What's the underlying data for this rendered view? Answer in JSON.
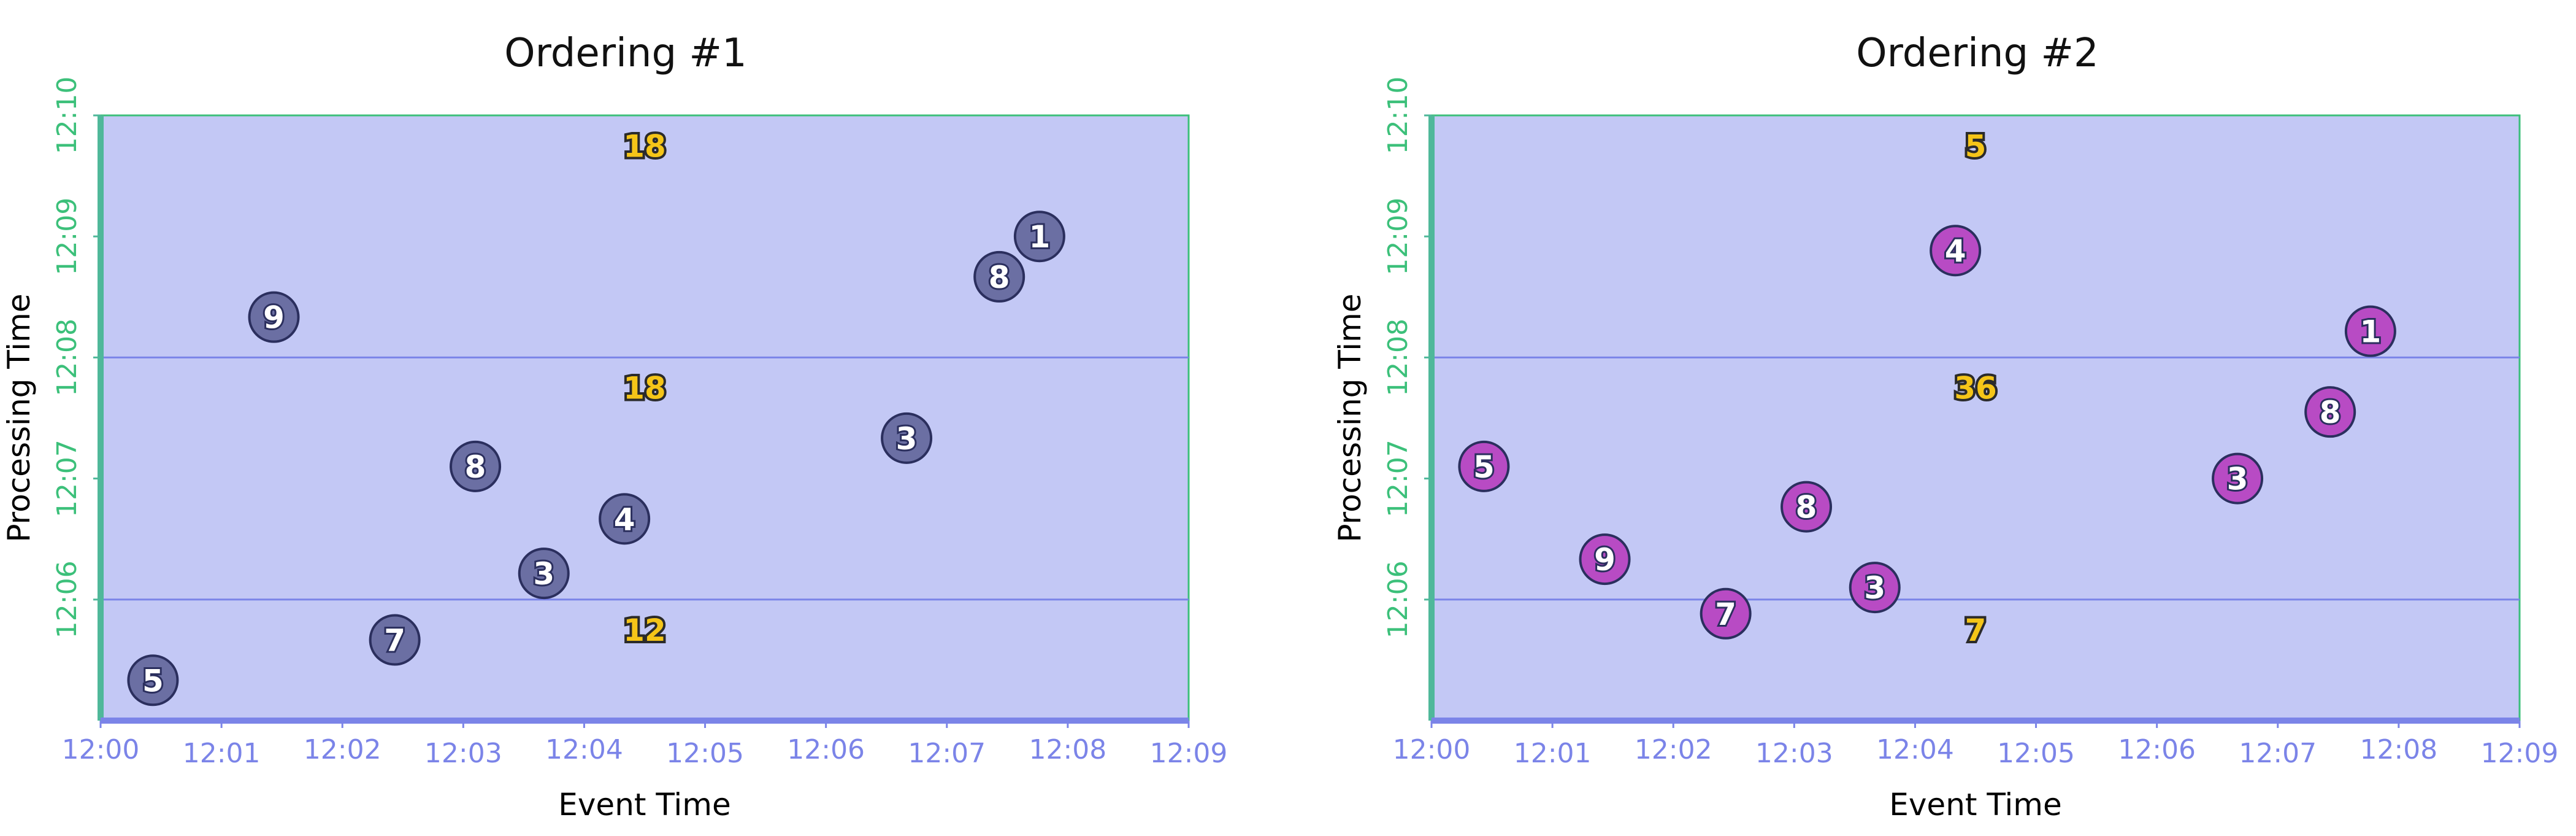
{
  "colors": {
    "plot_bg": "#c3c8f5",
    "plot_border": "#3cc07a",
    "x_axis": "#7b84e8",
    "y_axis": "#4fb89a",
    "divider": "#7b84e8",
    "x_text": "#7b84e8",
    "y_text": "#3cc07a",
    "point_fill_1": "#6b6fa3",
    "point_fill_2": "#b84bc4",
    "point_stroke": "#2b2f5e",
    "sum_fill": "#f5c518"
  },
  "chart_data": [
    {
      "type": "scatter",
      "title": "Ordering #1",
      "xlabel": "Event Time",
      "ylabel": "Processing Time",
      "x_ticks": [
        "12:00",
        "12:01",
        "12:02",
        "12:03",
        "12:04",
        "12:05",
        "12:06",
        "12:07",
        "12:08",
        "12:09"
      ],
      "y_ticks": [
        "12:06",
        "12:07",
        "12:08",
        "12:09",
        "12:10"
      ],
      "xlim": [
        "12:00:00",
        "12:09:00"
      ],
      "ylim": [
        "12:05:00",
        "12:10:00"
      ],
      "window_boundaries": [
        "12:06:00",
        "12:08:00"
      ],
      "points": [
        {
          "label": "5",
          "x": "12:00:26",
          "y": "12:05:20"
        },
        {
          "label": "9",
          "x": "12:01:26",
          "y": "12:08:20"
        },
        {
          "label": "7",
          "x": "12:02:26",
          "y": "12:05:40"
        },
        {
          "label": "8",
          "x": "12:03:06",
          "y": "12:07:06"
        },
        {
          "label": "3",
          "x": "12:03:40",
          "y": "12:06:13"
        },
        {
          "label": "4",
          "x": "12:04:20",
          "y": "12:06:40"
        },
        {
          "label": "3",
          "x": "12:06:40",
          "y": "12:07:20"
        },
        {
          "label": "8",
          "x": "12:07:26",
          "y": "12:08:40"
        },
        {
          "label": "1",
          "x": "12:07:46",
          "y": "12:09:00"
        }
      ],
      "sums": [
        {
          "label": "12",
          "x": "12:04:30",
          "y": "12:05:45"
        },
        {
          "label": "18",
          "x": "12:04:30",
          "y": "12:07:45"
        },
        {
          "label": "18",
          "x": "12:04:30",
          "y": "12:09:45"
        }
      ]
    },
    {
      "type": "scatter",
      "title": "Ordering #2",
      "xlabel": "Event Time",
      "ylabel": "Processing Time",
      "x_ticks": [
        "12:00",
        "12:01",
        "12:02",
        "12:03",
        "12:04",
        "12:05",
        "12:06",
        "12:07",
        "12:08",
        "12:09"
      ],
      "y_ticks": [
        "12:06",
        "12:07",
        "12:08",
        "12:09",
        "12:10"
      ],
      "xlim": [
        "12:00:00",
        "12:09:00"
      ],
      "ylim": [
        "12:05:00",
        "12:10:00"
      ],
      "window_boundaries": [
        "12:06:00",
        "12:08:00"
      ],
      "points": [
        {
          "label": "5",
          "x": "12:00:26",
          "y": "12:07:06"
        },
        {
          "label": "9",
          "x": "12:01:26",
          "y": "12:06:20"
        },
        {
          "label": "7",
          "x": "12:02:26",
          "y": "12:05:53"
        },
        {
          "label": "8",
          "x": "12:03:06",
          "y": "12:06:46"
        },
        {
          "label": "3",
          "x": "12:03:40",
          "y": "12:06:06"
        },
        {
          "label": "4",
          "x": "12:04:20",
          "y": "12:08:53"
        },
        {
          "label": "3",
          "x": "12:06:40",
          "y": "12:07:00"
        },
        {
          "label": "8",
          "x": "12:07:26",
          "y": "12:07:33"
        },
        {
          "label": "1",
          "x": "12:07:46",
          "y": "12:08:13"
        }
      ],
      "sums": [
        {
          "label": "7",
          "x": "12:04:30",
          "y": "12:05:45"
        },
        {
          "label": "36",
          "x": "12:04:30",
          "y": "12:07:45"
        },
        {
          "label": "5",
          "x": "12:04:30",
          "y": "12:09:45"
        }
      ]
    }
  ]
}
